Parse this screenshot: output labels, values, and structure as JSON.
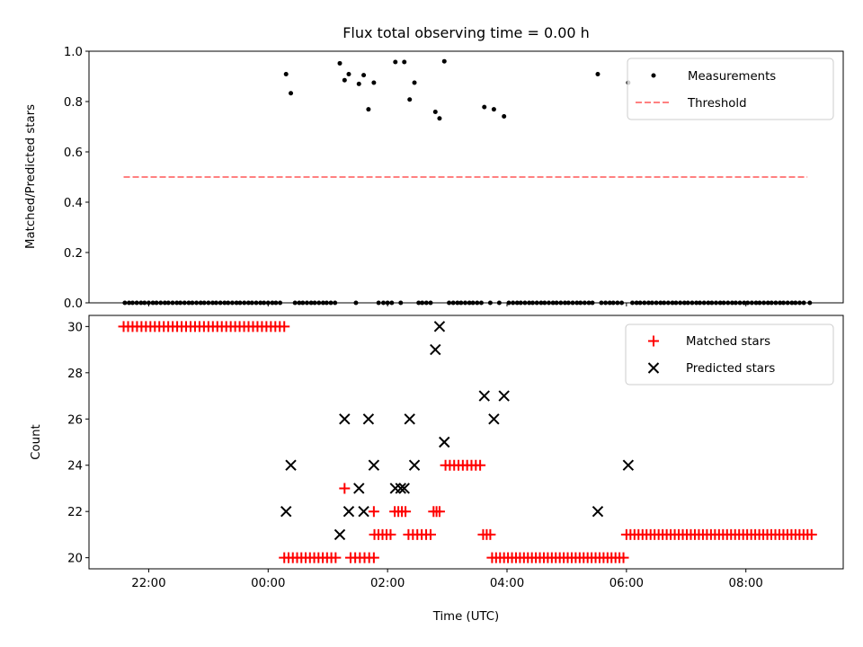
{
  "chart_data": [
    {
      "type": "scatter",
      "title": "Flux total observing time = 0.00 h",
      "xlabel": "",
      "ylabel": "Matched/Predicted stars",
      "xlim": [
        21.0,
        33.63
      ],
      "ylim": [
        0.0,
        1.0
      ],
      "yticks": [
        0.0,
        0.2,
        0.4,
        0.6,
        0.8,
        1.0
      ],
      "ytick_labels": [
        "0.0",
        "0.2",
        "0.4",
        "0.6",
        "0.8",
        "1.0"
      ],
      "xticks": [
        22,
        24,
        26,
        28,
        30,
        32
      ],
      "grid": false,
      "legend_position": "upper right",
      "legend": [
        "Measurements",
        "Threshold"
      ],
      "threshold": {
        "name": "Threshold",
        "x": [
          21.58,
          33.03
        ],
        "y": 0.5,
        "color": "#ff8080",
        "style": "dashed"
      },
      "series": [
        {
          "name": "Measurements",
          "marker": "dot",
          "color": "#000000",
          "points": [
            [
              21.6,
              0
            ],
            [
              21.67,
              0
            ],
            [
              21.73,
              0
            ],
            [
              21.8,
              0
            ],
            [
              21.87,
              0
            ],
            [
              21.93,
              0
            ],
            [
              22.0,
              0
            ],
            [
              22.07,
              0
            ],
            [
              22.13,
              0
            ],
            [
              22.2,
              0
            ],
            [
              22.27,
              0
            ],
            [
              22.33,
              0
            ],
            [
              22.4,
              0
            ],
            [
              22.47,
              0
            ],
            [
              22.53,
              0
            ],
            [
              22.6,
              0
            ],
            [
              22.67,
              0
            ],
            [
              22.73,
              0
            ],
            [
              22.8,
              0
            ],
            [
              22.87,
              0
            ],
            [
              22.93,
              0
            ],
            [
              23.0,
              0
            ],
            [
              23.07,
              0
            ],
            [
              23.13,
              0
            ],
            [
              23.2,
              0
            ],
            [
              23.27,
              0
            ],
            [
              23.33,
              0
            ],
            [
              23.4,
              0
            ],
            [
              23.47,
              0
            ],
            [
              23.53,
              0
            ],
            [
              23.6,
              0
            ],
            [
              23.67,
              0
            ],
            [
              23.73,
              0
            ],
            [
              23.8,
              0
            ],
            [
              23.87,
              0
            ],
            [
              23.93,
              0
            ],
            [
              24.0,
              0
            ],
            [
              24.07,
              0
            ],
            [
              24.13,
              0
            ],
            [
              24.2,
              0
            ],
            [
              24.3,
              0.909
            ],
            [
              24.38,
              0.833
            ],
            [
              24.45,
              0
            ],
            [
              24.52,
              0
            ],
            [
              24.58,
              0
            ],
            [
              24.65,
              0
            ],
            [
              24.72,
              0
            ],
            [
              24.78,
              0
            ],
            [
              24.85,
              0
            ],
            [
              24.92,
              0
            ],
            [
              24.98,
              0
            ],
            [
              25.05,
              0
            ],
            [
              25.12,
              0
            ],
            [
              25.2,
              0.952
            ],
            [
              25.28,
              0.885
            ],
            [
              25.35,
              0.909
            ],
            [
              25.47,
              0
            ],
            [
              25.52,
              0.87
            ],
            [
              25.6,
              0.905
            ],
            [
              25.68,
              0.769
            ],
            [
              25.77,
              0.875
            ],
            [
              25.85,
              0
            ],
            [
              25.93,
              0
            ],
            [
              26.0,
              0
            ],
            [
              26.07,
              0
            ],
            [
              26.13,
              0.957
            ],
            [
              26.22,
              0
            ],
            [
              26.28,
              0.957
            ],
            [
              26.37,
              0.808
            ],
            [
              26.45,
              0.875
            ],
            [
              26.52,
              0
            ],
            [
              26.58,
              0
            ],
            [
              26.65,
              0
            ],
            [
              26.72,
              0
            ],
            [
              26.8,
              0.759
            ],
            [
              26.87,
              0.733
            ],
            [
              26.95,
              0.96
            ],
            [
              27.03,
              0
            ],
            [
              27.1,
              0
            ],
            [
              27.17,
              0
            ],
            [
              27.23,
              0
            ],
            [
              27.3,
              0
            ],
            [
              27.37,
              0
            ],
            [
              27.43,
              0
            ],
            [
              27.5,
              0
            ],
            [
              27.57,
              0
            ],
            [
              27.62,
              0.778
            ],
            [
              27.72,
              0
            ],
            [
              27.78,
              0.769
            ],
            [
              27.87,
              0
            ],
            [
              27.95,
              0.741
            ],
            [
              28.03,
              0
            ],
            [
              28.1,
              0
            ],
            [
              28.17,
              0
            ],
            [
              28.23,
              0
            ],
            [
              28.3,
              0
            ],
            [
              28.37,
              0
            ],
            [
              28.43,
              0
            ],
            [
              28.5,
              0
            ],
            [
              28.57,
              0
            ],
            [
              28.63,
              0
            ],
            [
              28.7,
              0
            ],
            [
              28.77,
              0
            ],
            [
              28.83,
              0
            ],
            [
              28.9,
              0
            ],
            [
              28.97,
              0
            ],
            [
              29.03,
              0
            ],
            [
              29.1,
              0
            ],
            [
              29.17,
              0
            ],
            [
              29.23,
              0
            ],
            [
              29.3,
              0
            ],
            [
              29.37,
              0
            ],
            [
              29.43,
              0
            ],
            [
              29.52,
              0.909
            ],
            [
              29.58,
              0
            ],
            [
              29.65,
              0
            ],
            [
              29.72,
              0
            ],
            [
              29.78,
              0
            ],
            [
              29.85,
              0
            ],
            [
              29.92,
              0
            ],
            [
              30.03,
              0.875
            ],
            [
              30.1,
              0
            ],
            [
              30.17,
              0
            ],
            [
              30.23,
              0
            ],
            [
              30.3,
              0
            ],
            [
              30.37,
              0
            ],
            [
              30.43,
              0
            ],
            [
              30.5,
              0
            ],
            [
              30.57,
              0
            ],
            [
              30.63,
              0
            ],
            [
              30.7,
              0
            ],
            [
              30.77,
              0
            ],
            [
              30.83,
              0
            ],
            [
              30.9,
              0
            ],
            [
              30.97,
              0
            ],
            [
              31.03,
              0
            ],
            [
              31.1,
              0
            ],
            [
              31.17,
              0
            ],
            [
              31.23,
              0
            ],
            [
              31.3,
              0
            ],
            [
              31.37,
              0
            ],
            [
              31.43,
              0
            ],
            [
              31.5,
              0
            ],
            [
              31.57,
              0
            ],
            [
              31.63,
              0
            ],
            [
              31.7,
              0
            ],
            [
              31.77,
              0
            ],
            [
              31.83,
              0
            ],
            [
              31.9,
              0
            ],
            [
              31.97,
              0
            ],
            [
              32.03,
              0
            ],
            [
              32.1,
              0
            ],
            [
              32.17,
              0
            ],
            [
              32.23,
              0
            ],
            [
              32.3,
              0
            ],
            [
              32.37,
              0
            ],
            [
              32.43,
              0
            ],
            [
              32.5,
              0
            ],
            [
              32.57,
              0
            ],
            [
              32.63,
              0
            ],
            [
              32.7,
              0
            ],
            [
              32.77,
              0
            ],
            [
              32.83,
              0
            ],
            [
              32.9,
              0
            ],
            [
              32.97,
              0
            ],
            [
              33.07,
              0
            ]
          ]
        }
      ]
    },
    {
      "type": "scatter",
      "title": "",
      "xlabel": "Time (UTC)",
      "ylabel": "Count",
      "xlim": [
        21.0,
        33.63
      ],
      "ylim": [
        19.52,
        30.48
      ],
      "yticks": [
        20,
        22,
        24,
        26,
        28,
        30
      ],
      "ytick_labels": [
        "20",
        "22",
        "24",
        "26",
        "28",
        "30"
      ],
      "xticks": [
        22,
        24,
        26,
        28,
        30,
        32
      ],
      "xtick_labels": [
        "22:00",
        "00:00",
        "02:00",
        "04:00",
        "06:00",
        "08:00"
      ],
      "grid": false,
      "legend_position": "upper right",
      "legend": [
        "Matched stars",
        "Predicted stars"
      ],
      "series": [
        {
          "name": "Matched stars",
          "marker": "plus",
          "color": "#ff0000",
          "groups": [
            {
              "y": 30,
              "x_start": 21.58,
              "x_end": 24.27,
              "count": 37
            },
            {
              "y": 20,
              "x_start": 24.27,
              "x_end": 25.13,
              "count": 13
            },
            {
              "y": 23,
              "x_start": 25.28,
              "x_end": 25.28,
              "count": 1
            },
            {
              "y": 20,
              "x_start": 25.38,
              "x_end": 25.77,
              "count": 6
            },
            {
              "y": 22,
              "x_start": 25.77,
              "x_end": 25.77,
              "count": 1
            },
            {
              "y": 21,
              "x_start": 25.78,
              "x_end": 26.05,
              "count": 5
            },
            {
              "y": 22,
              "x_start": 26.12,
              "x_end": 26.3,
              "count": 4
            },
            {
              "y": 21,
              "x_start": 26.35,
              "x_end": 26.72,
              "count": 6
            },
            {
              "y": 22,
              "x_start": 26.77,
              "x_end": 26.87,
              "count": 3
            },
            {
              "y": 24,
              "x_start": 26.97,
              "x_end": 27.55,
              "count": 9
            },
            {
              "y": 21,
              "x_start": 27.6,
              "x_end": 27.72,
              "count": 3
            },
            {
              "y": 20,
              "x_start": 27.75,
              "x_end": 29.95,
              "count": 34
            },
            {
              "y": 21,
              "x_start": 30.0,
              "x_end": 33.1,
              "count": 47
            }
          ]
        },
        {
          "name": "Predicted stars",
          "marker": "x",
          "color": "#000000",
          "points": [
            [
              24.3,
              22
            ],
            [
              24.38,
              24
            ],
            [
              25.2,
              21
            ],
            [
              25.28,
              26
            ],
            [
              25.35,
              22
            ],
            [
              25.52,
              23
            ],
            [
              25.6,
              22
            ],
            [
              25.68,
              26
            ],
            [
              25.77,
              24
            ],
            [
              26.13,
              23
            ],
            [
              26.22,
              23
            ],
            [
              26.28,
              23
            ],
            [
              26.37,
              26
            ],
            [
              26.45,
              24
            ],
            [
              26.8,
              29
            ],
            [
              26.87,
              30
            ],
            [
              26.95,
              25
            ],
            [
              27.62,
              27
            ],
            [
              27.78,
              26
            ],
            [
              27.95,
              27
            ],
            [
              29.52,
              22
            ],
            [
              30.03,
              24
            ]
          ]
        }
      ]
    }
  ]
}
